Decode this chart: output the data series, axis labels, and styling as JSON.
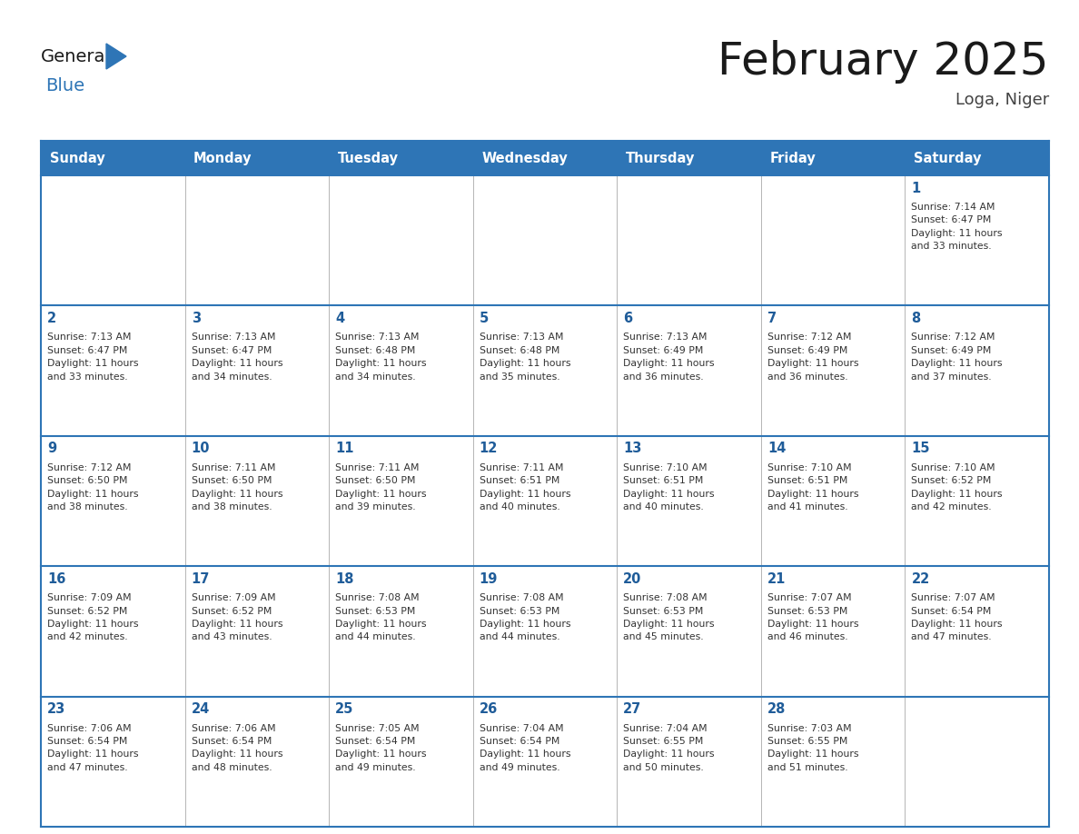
{
  "title": "February 2025",
  "subtitle": "Loga, Niger",
  "days_of_week": [
    "Sunday",
    "Monday",
    "Tuesday",
    "Wednesday",
    "Thursday",
    "Friday",
    "Saturday"
  ],
  "header_bg": "#2E75B6",
  "header_text": "#FFFFFF",
  "border_color": "#2E75B6",
  "day_num_color": "#1F5C99",
  "title_color": "#1a1a1a",
  "subtitle_color": "#444444",
  "logo_general_color": "#1a1a1a",
  "logo_blue_color": "#2E75B6",
  "weeks": [
    [
      {
        "day": null,
        "info": null
      },
      {
        "day": null,
        "info": null
      },
      {
        "day": null,
        "info": null
      },
      {
        "day": null,
        "info": null
      },
      {
        "day": null,
        "info": null
      },
      {
        "day": null,
        "info": null
      },
      {
        "day": 1,
        "info": "Sunrise: 7:14 AM\nSunset: 6:47 PM\nDaylight: 11 hours\nand 33 minutes."
      }
    ],
    [
      {
        "day": 2,
        "info": "Sunrise: 7:13 AM\nSunset: 6:47 PM\nDaylight: 11 hours\nand 33 minutes."
      },
      {
        "day": 3,
        "info": "Sunrise: 7:13 AM\nSunset: 6:47 PM\nDaylight: 11 hours\nand 34 minutes."
      },
      {
        "day": 4,
        "info": "Sunrise: 7:13 AM\nSunset: 6:48 PM\nDaylight: 11 hours\nand 34 minutes."
      },
      {
        "day": 5,
        "info": "Sunrise: 7:13 AM\nSunset: 6:48 PM\nDaylight: 11 hours\nand 35 minutes."
      },
      {
        "day": 6,
        "info": "Sunrise: 7:13 AM\nSunset: 6:49 PM\nDaylight: 11 hours\nand 36 minutes."
      },
      {
        "day": 7,
        "info": "Sunrise: 7:12 AM\nSunset: 6:49 PM\nDaylight: 11 hours\nand 36 minutes."
      },
      {
        "day": 8,
        "info": "Sunrise: 7:12 AM\nSunset: 6:49 PM\nDaylight: 11 hours\nand 37 minutes."
      }
    ],
    [
      {
        "day": 9,
        "info": "Sunrise: 7:12 AM\nSunset: 6:50 PM\nDaylight: 11 hours\nand 38 minutes."
      },
      {
        "day": 10,
        "info": "Sunrise: 7:11 AM\nSunset: 6:50 PM\nDaylight: 11 hours\nand 38 minutes."
      },
      {
        "day": 11,
        "info": "Sunrise: 7:11 AM\nSunset: 6:50 PM\nDaylight: 11 hours\nand 39 minutes."
      },
      {
        "day": 12,
        "info": "Sunrise: 7:11 AM\nSunset: 6:51 PM\nDaylight: 11 hours\nand 40 minutes."
      },
      {
        "day": 13,
        "info": "Sunrise: 7:10 AM\nSunset: 6:51 PM\nDaylight: 11 hours\nand 40 minutes."
      },
      {
        "day": 14,
        "info": "Sunrise: 7:10 AM\nSunset: 6:51 PM\nDaylight: 11 hours\nand 41 minutes."
      },
      {
        "day": 15,
        "info": "Sunrise: 7:10 AM\nSunset: 6:52 PM\nDaylight: 11 hours\nand 42 minutes."
      }
    ],
    [
      {
        "day": 16,
        "info": "Sunrise: 7:09 AM\nSunset: 6:52 PM\nDaylight: 11 hours\nand 42 minutes."
      },
      {
        "day": 17,
        "info": "Sunrise: 7:09 AM\nSunset: 6:52 PM\nDaylight: 11 hours\nand 43 minutes."
      },
      {
        "day": 18,
        "info": "Sunrise: 7:08 AM\nSunset: 6:53 PM\nDaylight: 11 hours\nand 44 minutes."
      },
      {
        "day": 19,
        "info": "Sunrise: 7:08 AM\nSunset: 6:53 PM\nDaylight: 11 hours\nand 44 minutes."
      },
      {
        "day": 20,
        "info": "Sunrise: 7:08 AM\nSunset: 6:53 PM\nDaylight: 11 hours\nand 45 minutes."
      },
      {
        "day": 21,
        "info": "Sunrise: 7:07 AM\nSunset: 6:53 PM\nDaylight: 11 hours\nand 46 minutes."
      },
      {
        "day": 22,
        "info": "Sunrise: 7:07 AM\nSunset: 6:54 PM\nDaylight: 11 hours\nand 47 minutes."
      }
    ],
    [
      {
        "day": 23,
        "info": "Sunrise: 7:06 AM\nSunset: 6:54 PM\nDaylight: 11 hours\nand 47 minutes."
      },
      {
        "day": 24,
        "info": "Sunrise: 7:06 AM\nSunset: 6:54 PM\nDaylight: 11 hours\nand 48 minutes."
      },
      {
        "day": 25,
        "info": "Sunrise: 7:05 AM\nSunset: 6:54 PM\nDaylight: 11 hours\nand 49 minutes."
      },
      {
        "day": 26,
        "info": "Sunrise: 7:04 AM\nSunset: 6:54 PM\nDaylight: 11 hours\nand 49 minutes."
      },
      {
        "day": 27,
        "info": "Sunrise: 7:04 AM\nSunset: 6:55 PM\nDaylight: 11 hours\nand 50 minutes."
      },
      {
        "day": 28,
        "info": "Sunrise: 7:03 AM\nSunset: 6:55 PM\nDaylight: 11 hours\nand 51 minutes."
      },
      {
        "day": null,
        "info": null
      }
    ]
  ]
}
